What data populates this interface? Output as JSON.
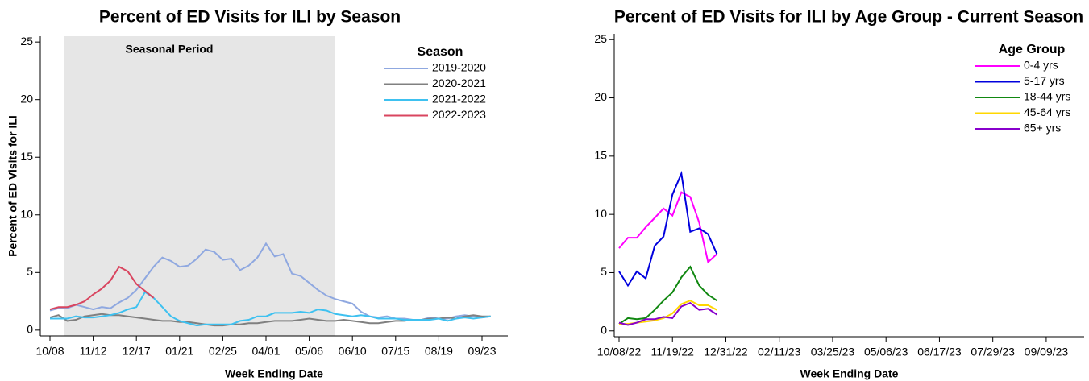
{
  "chart_data": [
    {
      "type": "line",
      "title": "Percent of ED Visits for ILI by Season",
      "x_label": "Week Ending Date",
      "y_label": "Percent of ED Visits for ILI",
      "categories": [
        "10/08",
        null,
        null,
        null,
        null,
        "11/12",
        null,
        null,
        null,
        null,
        "12/17",
        null,
        null,
        null,
        null,
        "01/21",
        null,
        null,
        null,
        null,
        "02/25",
        null,
        null,
        null,
        null,
        "04/01",
        null,
        null,
        null,
        null,
        "05/06",
        null,
        null,
        null,
        null,
        "06/10",
        null,
        null,
        null,
        null,
        "07/15",
        null,
        null,
        null,
        null,
        "08/19",
        null,
        null,
        null,
        null,
        "09/23",
        null
      ],
      "ylim": [
        -0.5,
        25.5
      ],
      "yticks": [
        0,
        5,
        10,
        15,
        20,
        25
      ],
      "shaded_region": {
        "label": "Seasonal Period",
        "start": 1.6,
        "end": 33
      },
      "legend_title": "Season",
      "legend": "top-right",
      "series": [
        {
          "name": "2019-2020",
          "color": "#8fa8e0",
          "values": [
            1.7,
            1.9,
            1.9,
            2.2,
            2.0,
            1.8,
            2.0,
            1.9,
            2.4,
            2.8,
            3.5,
            4.5,
            5.5,
            6.3,
            6.0,
            5.5,
            5.6,
            6.2,
            7.0,
            6.8,
            6.1,
            6.2,
            5.2,
            5.6,
            6.3,
            7.5,
            6.4,
            6.6,
            4.9,
            4.7,
            4.1,
            3.5,
            3.0,
            2.7,
            2.5,
            2.3,
            1.6,
            1.2,
            1.1,
            1.2,
            1.0,
            1.0,
            0.9,
            0.9,
            1.1,
            1.0,
            1.0,
            1.2,
            1.3,
            1.2,
            1.1,
            1.2
          ]
        },
        {
          "name": "2020-2021",
          "color": "#808080",
          "values": [
            1.1,
            1.3,
            0.8,
            0.9,
            1.2,
            1.3,
            1.4,
            1.3,
            1.3,
            1.2,
            1.1,
            1.0,
            0.9,
            0.8,
            0.8,
            0.7,
            0.7,
            0.6,
            0.5,
            0.4,
            0.4,
            0.5,
            0.5,
            0.6,
            0.6,
            0.7,
            0.8,
            0.8,
            0.8,
            0.9,
            1.0,
            0.9,
            0.8,
            0.8,
            0.9,
            0.8,
            0.7,
            0.6,
            0.6,
            0.7,
            0.8,
            0.8,
            0.9,
            0.9,
            1.0,
            1.0,
            1.1,
            1.0,
            1.2,
            1.3,
            1.2,
            1.2
          ]
        },
        {
          "name": "2021-2022",
          "color": "#3ec1f0",
          "values": [
            1.0,
            1.0,
            1.0,
            1.2,
            1.1,
            1.1,
            1.2,
            1.3,
            1.5,
            1.8,
            2.0,
            3.3,
            2.8,
            2.0,
            1.2,
            0.8,
            0.6,
            0.4,
            0.5,
            0.5,
            0.5,
            0.5,
            0.8,
            0.9,
            1.2,
            1.2,
            1.5,
            1.5,
            1.5,
            1.6,
            1.5,
            1.8,
            1.7,
            1.4,
            1.3,
            1.2,
            1.3,
            1.2,
            1.0,
            1.0,
            1.0,
            0.9,
            0.9,
            0.9,
            0.9,
            1.0,
            0.8,
            1.0,
            1.1,
            1.0,
            1.1,
            1.2
          ]
        },
        {
          "name": "2022-2023",
          "color": "#d9455f",
          "values": [
            1.8,
            2.0,
            2.0,
            2.2,
            2.5,
            3.1,
            3.6,
            4.3,
            5.5,
            5.1,
            4.0,
            3.4,
            2.8,
            null,
            null,
            null,
            null,
            null,
            null,
            null,
            null,
            null,
            null,
            null,
            null,
            null,
            null,
            null,
            null,
            null,
            null,
            null,
            null,
            null,
            null,
            null,
            null,
            null,
            null,
            null,
            null,
            null,
            null,
            null,
            null,
            null,
            null,
            null,
            null,
            null,
            null,
            null
          ]
        }
      ]
    },
    {
      "type": "line",
      "title": "Percent of ED Visits for ILI by Age Group - Current Season",
      "x_label": "Week Ending Date",
      "categories": [
        "10/08/22",
        null,
        null,
        null,
        null,
        null,
        "11/19/22",
        null,
        null,
        null,
        null,
        null,
        "12/31/22",
        null,
        null,
        null,
        null,
        null,
        "02/11/23",
        null,
        null,
        null,
        null,
        null,
        "03/25/23",
        null,
        null,
        null,
        null,
        null,
        "05/06/23",
        null,
        null,
        null,
        null,
        null,
        "06/17/23",
        null,
        null,
        null,
        null,
        null,
        "07/29/23",
        null,
        null,
        null,
        null,
        null,
        "09/09/23",
        null,
        null,
        null
      ],
      "ylim": [
        -0.5,
        25.5
      ],
      "yticks": [
        0,
        5,
        10,
        15,
        20,
        25
      ],
      "legend_title": "Age Group",
      "legend": "top-right",
      "series": [
        {
          "name": "0-4 yrs",
          "color": "#ff00ff",
          "values": [
            7.1,
            8.0,
            8.0,
            8.9,
            9.7,
            10.5,
            9.9,
            11.9,
            11.5,
            9.3,
            5.9,
            6.6,
            null,
            null,
            null,
            null,
            null,
            null,
            null,
            null,
            null,
            null,
            null,
            null,
            null,
            null,
            null,
            null,
            null,
            null,
            null,
            null,
            null,
            null,
            null,
            null,
            null,
            null,
            null,
            null,
            null,
            null,
            null,
            null,
            null,
            null,
            null,
            null,
            null,
            null,
            null,
            null
          ]
        },
        {
          "name": "5-17 yrs",
          "color": "#0000dd",
          "values": [
            5.1,
            3.9,
            5.1,
            4.5,
            7.3,
            8.1,
            11.7,
            13.5,
            8.5,
            8.8,
            8.3,
            6.6,
            null,
            null,
            null,
            null,
            null,
            null,
            null,
            null,
            null,
            null,
            null,
            null,
            null,
            null,
            null,
            null,
            null,
            null,
            null,
            null,
            null,
            null,
            null,
            null,
            null,
            null,
            null,
            null,
            null,
            null,
            null,
            null,
            null,
            null,
            null,
            null,
            null,
            null,
            null,
            null
          ]
        },
        {
          "name": "18-44 yrs",
          "color": "#118811",
          "values": [
            0.6,
            1.1,
            1.0,
            1.1,
            1.8,
            2.6,
            3.3,
            4.6,
            5.5,
            3.9,
            3.1,
            2.6,
            null,
            null,
            null,
            null,
            null,
            null,
            null,
            null,
            null,
            null,
            null,
            null,
            null,
            null,
            null,
            null,
            null,
            null,
            null,
            null,
            null,
            null,
            null,
            null,
            null,
            null,
            null,
            null,
            null,
            null,
            null,
            null,
            null,
            null,
            null,
            null,
            null,
            null,
            null,
            null
          ]
        },
        {
          "name": "45-64 yrs",
          "color": "#ffd700",
          "values": [
            0.6,
            0.6,
            0.7,
            0.8,
            0.9,
            1.1,
            1.5,
            2.3,
            2.6,
            2.2,
            2.2,
            1.8,
            null,
            null,
            null,
            null,
            null,
            null,
            null,
            null,
            null,
            null,
            null,
            null,
            null,
            null,
            null,
            null,
            null,
            null,
            null,
            null,
            null,
            null,
            null,
            null,
            null,
            null,
            null,
            null,
            null,
            null,
            null,
            null,
            null,
            null,
            null,
            null,
            null,
            null,
            null,
            null
          ]
        },
        {
          "name": "65+ yrs",
          "color": "#8800cc",
          "values": [
            0.7,
            0.5,
            0.7,
            1.0,
            1.0,
            1.2,
            1.1,
            2.1,
            2.4,
            1.8,
            1.9,
            1.4,
            null,
            null,
            null,
            null,
            null,
            null,
            null,
            null,
            null,
            null,
            null,
            null,
            null,
            null,
            null,
            null,
            null,
            null,
            null,
            null,
            null,
            null,
            null,
            null,
            null,
            null,
            null,
            null,
            null,
            null,
            null,
            null,
            null,
            null,
            null,
            null,
            null,
            null,
            null,
            null
          ]
        }
      ]
    }
  ]
}
